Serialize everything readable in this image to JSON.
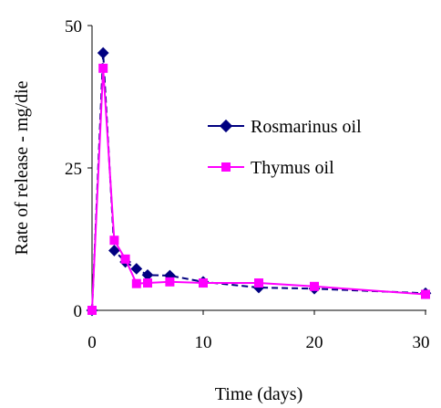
{
  "chart_data": {
    "type": "line",
    "title": "",
    "xlabel": "Time (days)",
    "ylabel": "Rate of release - mg/die",
    "xlim": [
      0,
      30
    ],
    "ylim": [
      0,
      50
    ],
    "xticks": [
      "0",
      "10",
      "20",
      "30"
    ],
    "yticks": [
      "0",
      "25",
      "50"
    ],
    "grid": false,
    "legend_position": "right",
    "series": [
      {
        "name": "Rosmarinus oil",
        "color": "#000080",
        "marker": "diamond",
        "dash": "dashed",
        "points": [
          [
            0,
            0
          ],
          [
            1,
            45.2
          ],
          [
            2,
            10.5
          ],
          [
            3,
            8.5
          ],
          [
            4,
            7.3
          ],
          [
            5,
            6.2
          ],
          [
            7,
            6.1
          ],
          [
            10,
            5.0
          ],
          [
            15,
            4.0
          ],
          [
            20,
            3.8
          ],
          [
            30,
            3.0
          ]
        ]
      },
      {
        "name": "Thymus oil",
        "color": "#ff00ff",
        "marker": "square",
        "dash": "solid",
        "points": [
          [
            0,
            0
          ],
          [
            1,
            42.5
          ],
          [
            2,
            12.3
          ],
          [
            3,
            9.0
          ],
          [
            4,
            4.7
          ],
          [
            5,
            4.8
          ],
          [
            7,
            5.0
          ],
          [
            10,
            4.8
          ],
          [
            15,
            4.8
          ],
          [
            20,
            4.2
          ],
          [
            30,
            2.8
          ]
        ]
      }
    ]
  }
}
